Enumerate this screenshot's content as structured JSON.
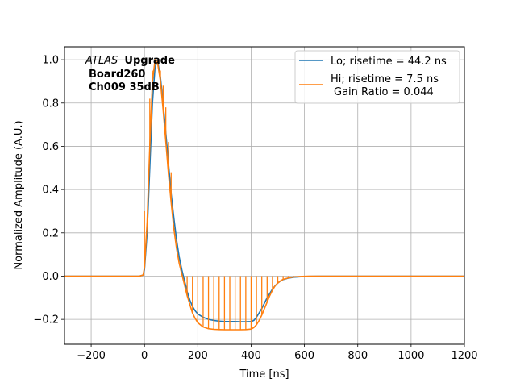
{
  "chart_data": {
    "type": "line",
    "xlabel": "Time [ns]",
    "ylabel": "Normalized Amplitude (A.U.)",
    "xlim": [
      -300,
      1200
    ],
    "ylim": [
      -0.315,
      1.06
    ],
    "xticks": [
      -200,
      0,
      200,
      400,
      600,
      800,
      1000,
      1200
    ],
    "yticks": [
      -0.2,
      0.0,
      0.2,
      0.4,
      0.6,
      0.8,
      1.0
    ],
    "xtick_labels": [
      "−200",
      "0",
      "200",
      "400",
      "600",
      "800",
      "1000",
      "1200"
    ],
    "ytick_labels": [
      "−0.2",
      "0.0",
      "0.2",
      "0.4",
      "0.6",
      "0.8",
      "1.0"
    ],
    "grid": true,
    "legend_position": "top-right",
    "annotation": {
      "experiment": "ATLAS",
      "tag": "Upgrade",
      "line2": "Board260",
      "line3": "Ch009 35dB"
    },
    "series": [
      {
        "name": "Lo; risetime = 44.2 ns",
        "color": "#1f77b4",
        "x": [
          -300,
          -20,
          -5,
          0,
          10,
          20,
          30,
          40,
          50,
          60,
          70,
          80,
          90,
          100,
          110,
          120,
          130,
          140,
          150,
          160,
          170,
          180,
          190,
          200,
          220,
          240,
          260,
          280,
          300,
          320,
          340,
          360,
          380,
          400,
          410,
          420,
          430,
          440,
          450,
          460,
          470,
          480,
          490,
          500,
          510,
          520,
          540,
          560,
          580,
          600,
          620,
          650,
          700,
          800,
          900,
          1000,
          1100,
          1200
        ],
        "y": [
          0.0,
          0.0,
          0.005,
          0.03,
          0.2,
          0.5,
          0.8,
          0.97,
          0.99,
          0.92,
          0.8,
          0.66,
          0.52,
          0.38,
          0.27,
          0.17,
          0.09,
          0.03,
          -0.02,
          -0.07,
          -0.11,
          -0.14,
          -0.16,
          -0.175,
          -0.19,
          -0.2,
          -0.205,
          -0.208,
          -0.21,
          -0.21,
          -0.21,
          -0.211,
          -0.211,
          -0.21,
          -0.205,
          -0.19,
          -0.17,
          -0.15,
          -0.125,
          -0.1,
          -0.08,
          -0.06,
          -0.045,
          -0.032,
          -0.023,
          -0.016,
          -0.009,
          -0.005,
          -0.003,
          -0.002,
          -0.001,
          0.0,
          0.0,
          0.0,
          0.0,
          0.0,
          0.0,
          0.0
        ]
      },
      {
        "name": "Hi; risetime = 7.5 ns",
        "name_line2": "Gain Ratio = 0.044",
        "color": "#ff7f0e",
        "x": [
          -300,
          -20,
          -5,
          0,
          10,
          20,
          30,
          40,
          50,
          60,
          70,
          80,
          90,
          100,
          110,
          120,
          130,
          140,
          150,
          160,
          170,
          180,
          190,
          200,
          220,
          240,
          260,
          280,
          300,
          320,
          340,
          360,
          380,
          400,
          410,
          420,
          430,
          440,
          450,
          460,
          470,
          480,
          490,
          500,
          510,
          520,
          540,
          560,
          580,
          600,
          620,
          650,
          700,
          800,
          900,
          1000,
          1100,
          1200
        ],
        "y": [
          0.0,
          0.0,
          0.005,
          0.04,
          0.25,
          0.6,
          0.9,
          1.0,
          0.98,
          0.9,
          0.77,
          0.62,
          0.47,
          0.34,
          0.22,
          0.13,
          0.06,
          0.01,
          -0.04,
          -0.09,
          -0.13,
          -0.17,
          -0.195,
          -0.215,
          -0.235,
          -0.243,
          -0.246,
          -0.247,
          -0.248,
          -0.248,
          -0.248,
          -0.248,
          -0.247,
          -0.245,
          -0.238,
          -0.225,
          -0.205,
          -0.18,
          -0.15,
          -0.12,
          -0.09,
          -0.065,
          -0.045,
          -0.032,
          -0.022,
          -0.015,
          -0.008,
          -0.004,
          -0.002,
          -0.001,
          0.0,
          0.0,
          0.0,
          0.0,
          0.0,
          0.0,
          0.0,
          0.0
        ],
        "spikes": {
          "x": [
            0,
            10,
            20,
            30,
            40,
            50,
            60,
            70,
            80,
            90,
            100,
            160,
            180,
            200,
            220,
            240,
            260,
            280,
            300,
            320,
            340,
            360,
            380,
            400,
            420,
            440,
            460,
            480,
            500,
            520,
            540,
            560,
            580
          ],
          "to_y": [
            0.3,
            0.25,
            0.82,
            0.95,
            1.0,
            1.0,
            0.95,
            0.88,
            0.78,
            0.62,
            0.48,
            0.0,
            0.0,
            0.0,
            0.0,
            0.0,
            0.0,
            0.0,
            0.0,
            0.0,
            0.0,
            0.0,
            0.0,
            0.0,
            0.0,
            0.0,
            0.0,
            0.0,
            0.0,
            0.0,
            0.0,
            0.0,
            0.0
          ]
        }
      }
    ]
  }
}
